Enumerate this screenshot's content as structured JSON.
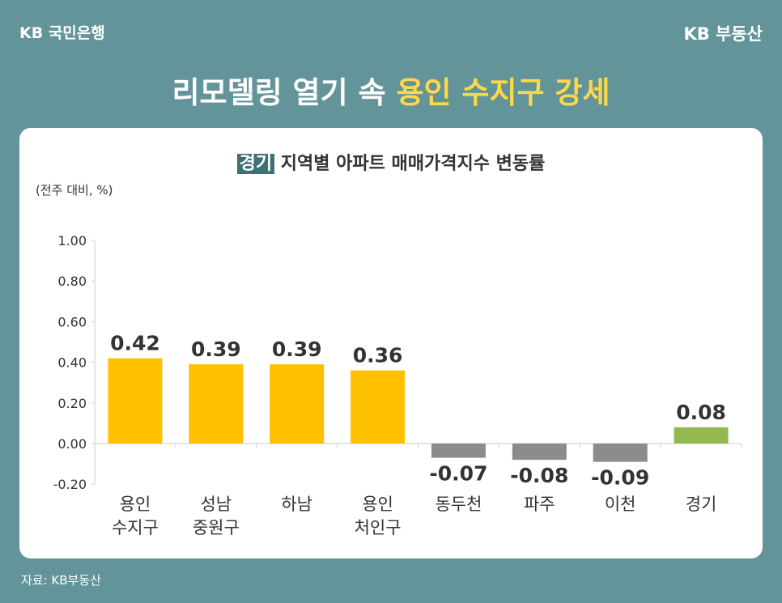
{
  "header": {
    "bank_logo": "KB 국민은행",
    "brand_logo": "KB 부동산"
  },
  "title": {
    "main": "리모델링 열기 속 ",
    "highlight": "용인 수지구 강세"
  },
  "chart_data": {
    "type": "bar",
    "title_tag": "경기",
    "title": "지역별 아파트 매매가격지수 변동률",
    "unit_label": "(전주 대비, %)",
    "categories": [
      "용인\n수지구",
      "성남\n중원구",
      "하남",
      "용인\n처인구",
      "동두천",
      "파주",
      "이천",
      "경기"
    ],
    "values": [
      0.42,
      0.39,
      0.39,
      0.36,
      -0.07,
      -0.08,
      -0.09,
      0.08
    ],
    "value_labels": [
      "0.42",
      "0.39",
      "0.39",
      "0.36",
      "-0.07",
      "-0.08",
      "-0.09",
      "0.08"
    ],
    "bar_colors": [
      "#ffc000",
      "#ffc000",
      "#ffc000",
      "#ffc000",
      "#8c8c8c",
      "#8c8c8c",
      "#8c8c8c",
      "#92b84f"
    ],
    "ylim": [
      -0.2,
      1.0
    ],
    "yticks": [
      "1.00",
      "0.80",
      "0.60",
      "0.40",
      "0.20",
      "0.00",
      "-0.20"
    ],
    "grid": false
  },
  "footer": {
    "source": "자료: KB부동산"
  }
}
